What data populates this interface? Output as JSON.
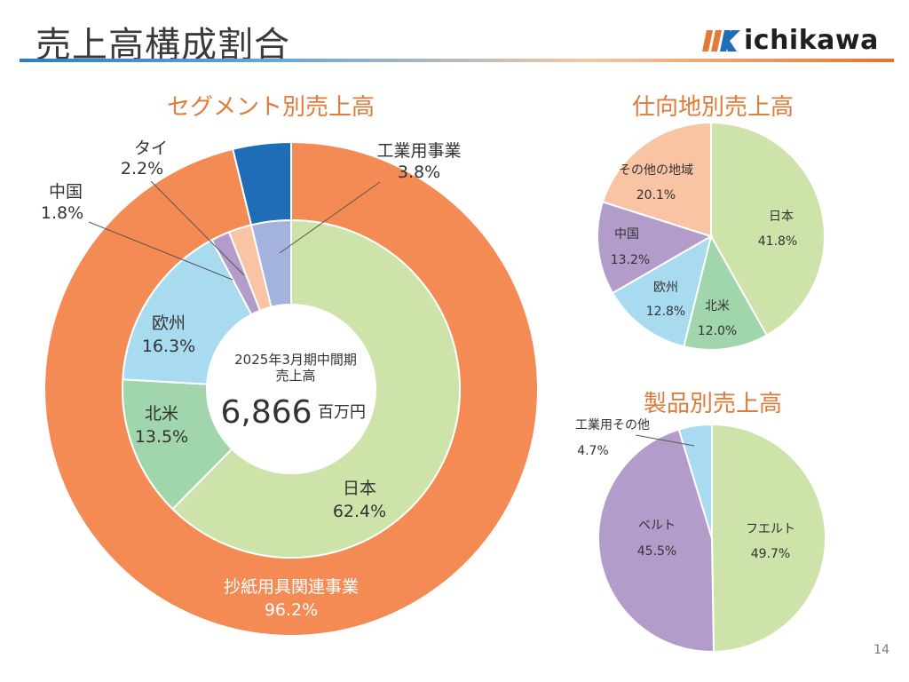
{
  "page": {
    "title": "売上高構成割合",
    "logo_text": "ichikawa",
    "page_number": "14"
  },
  "colors": {
    "green": "#cde3a9",
    "orange": "#f48b55",
    "blue_dark": "#1f6db7",
    "cyan": "#a8dbef",
    "mint": "#a1d5ab",
    "lavender": "#b39cc9",
    "peach": "#f8c4a3",
    "periwinkle": "#a4b3dd",
    "title_orange": "#e07b39"
  },
  "chart_data": [
    {
      "type": "pie",
      "title": "セグメント別売上高",
      "center_text": {
        "line1": "2025年3月期中間期",
        "line2": "売上高",
        "value": "6,866",
        "unit": "百万円"
      },
      "rings": [
        {
          "name": "",
          "slices": [
            {
              "label": "抄紙用具関連事業",
              "value": 96.2,
              "display": "96.2%",
              "color": "#f48b55"
            },
            {
              "label": "工業用事業",
              "value": 3.8,
              "display": "3.8%",
              "color": "#1f6db7"
            }
          ]
        },
        {
          "name": "",
          "slices": [
            {
              "label": "日本",
              "value": 62.4,
              "display": "62.4%",
              "color": "#cde3a9"
            },
            {
              "label": "北米",
              "value": 13.5,
              "display": "13.5%",
              "color": "#a1d5ab"
            },
            {
              "label": "欧州",
              "value": 16.3,
              "display": "16.3%",
              "color": "#a8dbef"
            },
            {
              "label": "中国",
              "value": 1.8,
              "display": "1.8%",
              "color": "#b39cc9"
            },
            {
              "label": "タイ",
              "value": 2.2,
              "display": "2.2%",
              "color": "#f8c4a3"
            },
            {
              "label": "工業用事業",
              "value": 3.8,
              "display": "",
              "color": "#a4b3dd"
            }
          ]
        }
      ]
    },
    {
      "type": "pie",
      "title": "仕向地別売上高",
      "slices": [
        {
          "label": "日本",
          "value": 41.8,
          "display": "41.8%",
          "color": "#cde3a9"
        },
        {
          "label": "北米",
          "value": 12.0,
          "display": "12.0%",
          "color": "#a1d5ab"
        },
        {
          "label": "欧州",
          "value": 12.8,
          "display": "12.8%",
          "color": "#a8dbef"
        },
        {
          "label": "中国",
          "value": 13.2,
          "display": "13.2%",
          "color": "#b39cc9"
        },
        {
          "label": "その他の地域",
          "value": 20.1,
          "display": "20.1%",
          "color": "#f8c4a3"
        }
      ]
    },
    {
      "type": "pie",
      "title": "製品別売上高",
      "slices": [
        {
          "label": "フエルト",
          "value": 49.7,
          "display": "49.7%",
          "color": "#cde3a9"
        },
        {
          "label": "ベルト",
          "value": 45.5,
          "display": "45.5%",
          "color": "#b39cc9"
        },
        {
          "label": "工業用その他",
          "value": 4.7,
          "display": "4.7%",
          "color": "#a8dbef"
        }
      ]
    }
  ]
}
